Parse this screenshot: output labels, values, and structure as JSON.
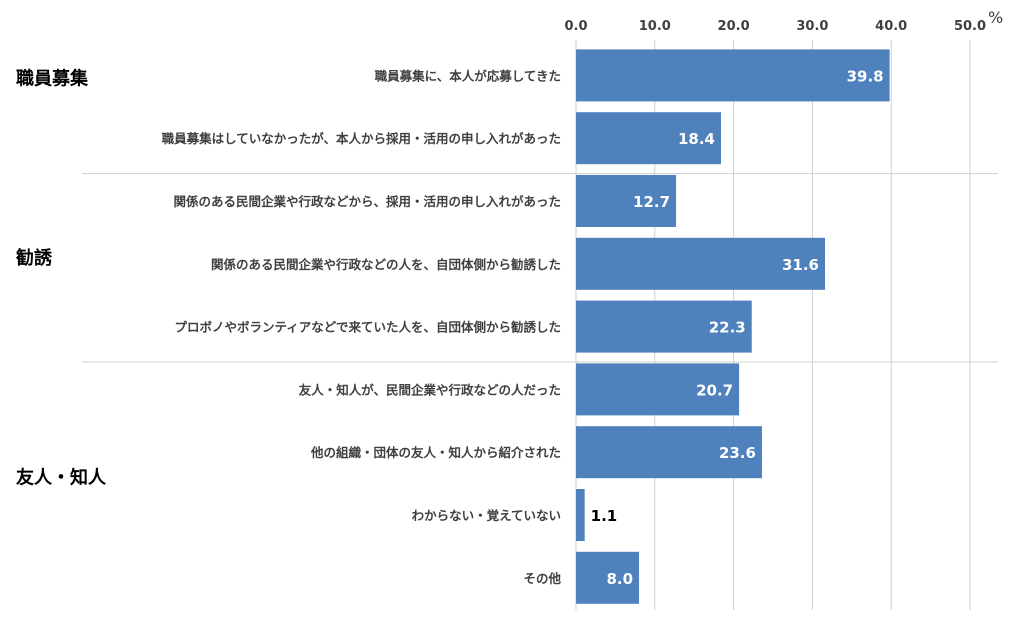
{
  "chart_data": {
    "type": "bar",
    "orientation": "horizontal",
    "unit": "%",
    "xlim": [
      0,
      50
    ],
    "ticks": [
      "0.0",
      "10.0",
      "20.0",
      "30.0",
      "40.0",
      "50.0"
    ],
    "bar_color": "#4f81bd",
    "grid": true,
    "groups": [
      {
        "label": "職員募集",
        "items": [
          0,
          1
        ]
      },
      {
        "label": "勧誘",
        "items": [
          2,
          3,
          4
        ]
      },
      {
        "label": "友人・知人",
        "items": [
          5,
          6,
          7,
          8
        ]
      }
    ],
    "categories": [
      "職員募集に、本人が応募してきた",
      "職員募集はしていなかったが、本人から採用・活用の申し入れがあった",
      "関係のある民間企業や行政などから、採用・活用の申し入れがあった",
      "関係のある民間企業や行政などの人を、自団体側から勧誘した",
      "プロボノやボランティアなどで来ていた人を、自団体側から勧誘した",
      "友人・知人が、民間企業や行政などの人だった",
      "他の組織・団体の友人・知人から紹介された",
      "わからない・覚えていない",
      "その他"
    ],
    "values": [
      39.8,
      18.4,
      12.7,
      31.6,
      22.3,
      20.7,
      23.6,
      1.1,
      8.0
    ],
    "value_labels": [
      "39.8",
      "18.4",
      "12.7",
      "31.6",
      "22.3",
      "20.7",
      "23.6",
      "1.1",
      "8.0"
    ]
  }
}
